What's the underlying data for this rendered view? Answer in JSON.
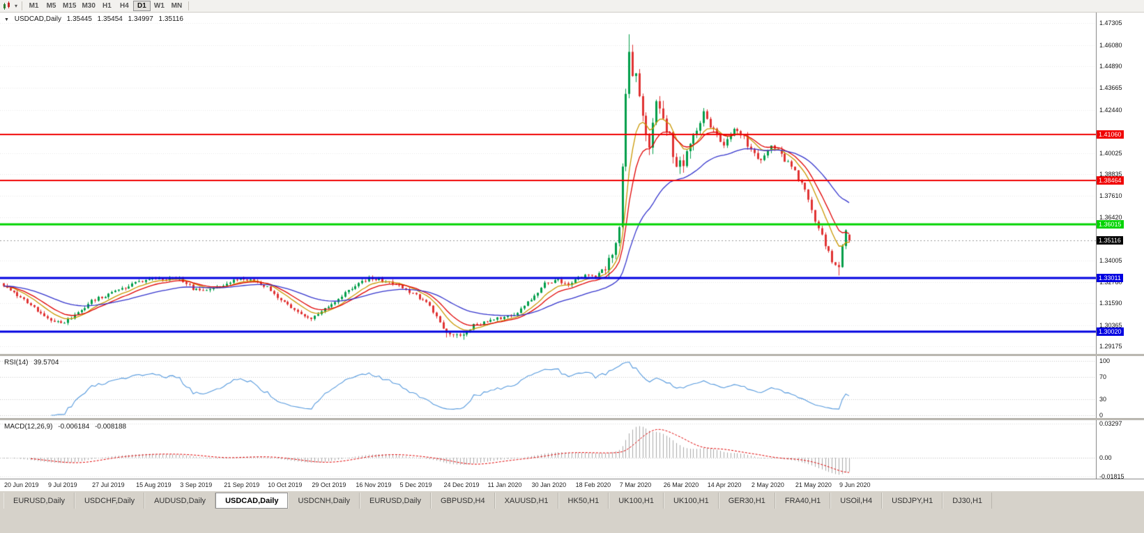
{
  "icons": {
    "collapse_arrow": "▼",
    "dropdown_caret": "▾"
  },
  "toolbar": {
    "timeframes": [
      "M1",
      "M5",
      "M15",
      "M30",
      "H1",
      "H4",
      "D1",
      "W1",
      "MN"
    ],
    "active_timeframe": "D1"
  },
  "chart_header": {
    "symbol": "USDCAD,Daily",
    "open": "1.35445",
    "high": "1.35454",
    "low": "1.34997",
    "close": "1.35116"
  },
  "price_axis": {
    "ticks": [
      1.47305,
      1.4608,
      1.4489,
      1.43665,
      1.4244,
      1.40025,
      1.38835,
      1.3761,
      1.3642,
      1.34005,
      1.3278,
      1.3159,
      1.30365,
      1.29175
    ]
  },
  "rsi": {
    "title": "RSI(14)",
    "value": "39.5704",
    "levels": [
      100,
      70,
      30,
      0
    ],
    "color": "#5599dd"
  },
  "macd": {
    "title": "MACD(12,26,9)",
    "value_main": "-0.006184",
    "value_signal": "-0.008188",
    "axis": [
      {
        "label": "0.03297",
        "value": 0.03297
      },
      {
        "label": "0.00",
        "value": 0.0
      },
      {
        "label": "-0.01815",
        "value": -0.01815
      }
    ],
    "histogram_color": "#a8a8a8",
    "signal_color": "#e00000"
  },
  "date_axis": [
    "20 Jun 2019",
    "9 Jul 2019",
    "27 Jul 2019",
    "15 Aug 2019",
    "3 Sep 2019",
    "21 Sep 2019",
    "10 Oct 2019",
    "29 Oct 2019",
    "16 Nov 2019",
    "5 Dec 2019",
    "24 Dec 2019",
    "11 Jan 2020",
    "30 Jan 2020",
    "18 Feb 2020",
    "7 Mar 2020",
    "26 Mar 2020",
    "14 Apr 2020",
    "2 May 2020",
    "21 May 2020",
    "9 Jun 2020"
  ],
  "tabs": {
    "items": [
      "EURUSD,Daily",
      "USDCHF,Daily",
      "AUDUSD,Daily",
      "USDCAD,Daily",
      "USDCNH,Daily",
      "EURUSD,Daily",
      "GBPUSD,H4",
      "XAUUSD,H1",
      "HK50,H1",
      "UK100,H1",
      "UK100,H1",
      "GER30,H1",
      "FRA40,H1",
      "USOil,H4",
      "USDJPY,H1",
      "DJ30,H1"
    ],
    "active_index": 3
  },
  "chart_data": {
    "type": "candlestick",
    "symbol": "USDCAD",
    "timeframe": "Daily",
    "n_candles": 251,
    "candles_per_label": 13,
    "price_range": {
      "top": 1.479,
      "bottom": 1.2875
    },
    "up_color": "#009e4a",
    "down_color": "#e03232",
    "close_anchors": [
      [
        0,
        1.3258
      ],
      [
        5,
        1.319
      ],
      [
        9,
        1.313
      ],
      [
        13,
        1.3068
      ],
      [
        18,
        1.305
      ],
      [
        22,
        1.3105
      ],
      [
        26,
        1.3172
      ],
      [
        31,
        1.321
      ],
      [
        36,
        1.3245
      ],
      [
        40,
        1.328
      ],
      [
        44,
        1.3308
      ],
      [
        48,
        1.3295
      ],
      [
        52,
        1.33
      ],
      [
        56,
        1.324
      ],
      [
        60,
        1.3225
      ],
      [
        65,
        1.3262
      ],
      [
        70,
        1.33
      ],
      [
        74,
        1.3285
      ],
      [
        78,
        1.325
      ],
      [
        82,
        1.317
      ],
      [
        86,
        1.3125
      ],
      [
        91,
        1.3072
      ],
      [
        96,
        1.314
      ],
      [
        100,
        1.32
      ],
      [
        104,
        1.3262
      ],
      [
        108,
        1.3298
      ],
      [
        112,
        1.329
      ],
      [
        117,
        1.3258
      ],
      [
        121,
        1.3215
      ],
      [
        125,
        1.3165
      ],
      [
        128,
        1.308
      ],
      [
        131,
        1.2992
      ],
      [
        135,
        1.2972
      ],
      [
        139,
        1.3035
      ],
      [
        143,
        1.3058
      ],
      [
        148,
        1.308
      ],
      [
        152,
        1.3105
      ],
      [
        156,
        1.3185
      ],
      [
        160,
        1.3268
      ],
      [
        164,
        1.329
      ],
      [
        167,
        1.3262
      ],
      [
        169,
        1.3298
      ],
      [
        172,
        1.3318
      ],
      [
        175,
        1.3305
      ],
      [
        178,
        1.3368
      ],
      [
        180,
        1.3425
      ],
      [
        182,
        1.356
      ],
      [
        183,
        1.392
      ],
      [
        184,
        1.433
      ],
      [
        185,
        1.459
      ],
      [
        186,
        1.4445
      ],
      [
        187,
        1.448
      ],
      [
        189,
        1.4205
      ],
      [
        191,
        1.406
      ],
      [
        193,
        1.4275
      ],
      [
        195,
        1.418
      ],
      [
        197,
        1.4105
      ],
      [
        199,
        1.3915
      ],
      [
        201,
        1.3958
      ],
      [
        204,
        1.4085
      ],
      [
        207,
        1.4228
      ],
      [
        210,
        1.4125
      ],
      [
        213,
        1.4035
      ],
      [
        216,
        1.4135
      ],
      [
        219,
        1.409
      ],
      [
        221,
        1.4015
      ],
      [
        224,
        1.3955
      ],
      [
        227,
        1.4048
      ],
      [
        230,
        1.3985
      ],
      [
        234,
        1.3905
      ],
      [
        237,
        1.3788
      ],
      [
        240,
        1.3625
      ],
      [
        243,
        1.3492
      ],
      [
        245,
        1.3398
      ],
      [
        247,
        1.3372
      ],
      [
        248,
        1.3485
      ],
      [
        249,
        1.3568
      ],
      [
        250,
        1.35116
      ]
    ],
    "specials": {
      "spike_index": 185,
      "spike_high": 1.4668,
      "june_low_index": 247,
      "june_low": 1.3315,
      "dec_low": 1.2952,
      "dec_low_range": [
        131,
        136
      ],
      "last_candle": {
        "open": 1.35445,
        "high": 1.35454,
        "low": 1.34997,
        "close": 1.35116
      }
    },
    "moving_averages": [
      {
        "type": "ema",
        "period": 8,
        "color": "#c99700"
      },
      {
        "type": "ema",
        "period": 13,
        "color": "#e00000"
      },
      {
        "type": "ema",
        "period": 34,
        "color": "#3333cc"
      }
    ],
    "horizontal_lines": [
      {
        "value": 1.4106,
        "color": "#f00000",
        "width": 2
      },
      {
        "value": 1.38464,
        "color": "#f00000",
        "width": 2
      },
      {
        "value": 1.36015,
        "color": "#00d400",
        "width": 3
      },
      {
        "value": 1.33011,
        "color": "#0000e0",
        "width": 3
      },
      {
        "value": 1.3002,
        "color": "#0000e0",
        "width": 3
      }
    ],
    "current_price": {
      "value": 1.35116,
      "badge_color": "#000000",
      "line_color": "#9a9a9a"
    }
  }
}
